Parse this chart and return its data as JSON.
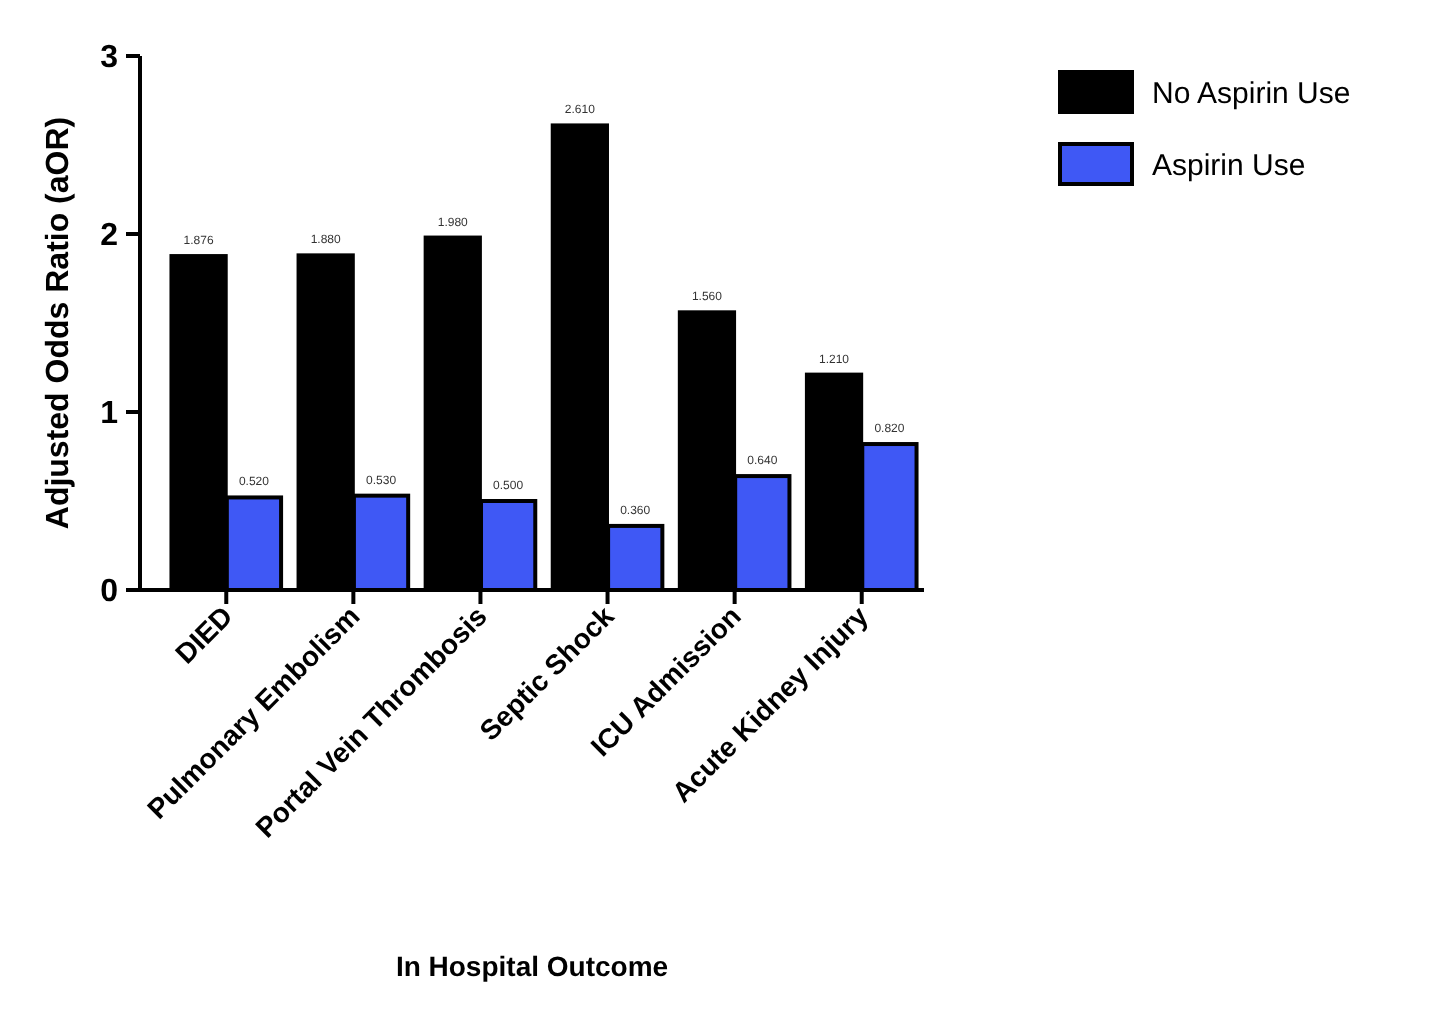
{
  "chart_data": {
    "type": "bar",
    "xlabel": "In Hospital Outcome",
    "ylabel": "Adjusted Odds Ratio (aOR)",
    "categories": [
      "DIED",
      "Pulmonary Embolism",
      "Portal Vein Thrombosis",
      "Septic Shock",
      "ICU Admission",
      "Acute Kidney Injury"
    ],
    "series": [
      {
        "name": "No Aspirin Use",
        "color": "#000000",
        "values": [
          1.876,
          1.88,
          1.98,
          2.61,
          1.56,
          1.21
        ],
        "value_labels": [
          "1.876",
          "1.880",
          "1.980",
          "2.610",
          "1.560",
          "1.210"
        ]
      },
      {
        "name": "Aspirin Use",
        "color": "#3f58f5",
        "values": [
          0.52,
          0.53,
          0.5,
          0.36,
          0.64,
          0.82
        ],
        "value_labels": [
          "0.520",
          "0.530",
          "0.500",
          "0.360",
          "0.640",
          "0.820"
        ]
      }
    ],
    "ylim": [
      0,
      3
    ],
    "yticks": [
      0,
      1,
      2,
      3
    ],
    "legend": "top right"
  }
}
